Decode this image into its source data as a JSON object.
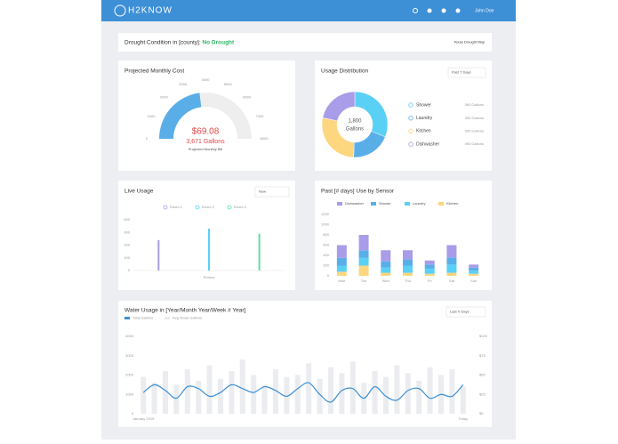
{
  "header": {
    "logo": "H2KNOW",
    "user": "John Doe"
  },
  "drought": {
    "label": "Drought Condition in [county]:",
    "status": "No Drought",
    "link": "Texas Drought Map"
  },
  "cost_card": {
    "title": "Projected Monthly Cost",
    "chart_data": {
      "type": "gauge",
      "value": 3671,
      "value_label": "3,671 Gallons",
      "cost": "$69.08",
      "caption": "Projected Monthly Bill",
      "ylim": [
        0,
        8000
      ],
      "yticks": [
        0,
        1000,
        2000,
        3000,
        4000,
        5000,
        6000,
        7000,
        8000
      ],
      "color": "#5aaee8"
    }
  },
  "distribution_card": {
    "title": "Usage Distribution",
    "dropdown": "Past 7 Days",
    "chart_data": {
      "type": "donut",
      "total_label": "1,800",
      "unit": "Gallons",
      "categories": [
        "Shower",
        "Laundry",
        "Kitchen",
        "Dishwasher"
      ],
      "values": [
        560,
        350,
        500,
        390
      ],
      "value_labels": [
        "560 Gallons",
        "350 Gallons",
        "500 Gallons",
        "390 Gallons"
      ],
      "colors": [
        "#5ad0f5",
        "#5aaee8",
        "#fdd680",
        "#a99ce8"
      ]
    }
  },
  "live_card": {
    "title": "Live Usage",
    "dropdown": "Now",
    "chart_data": {
      "type": "bar",
      "categories": [
        "Room 1",
        "Room 2",
        "Room 3"
      ],
      "values": [
        240,
        330,
        290
      ],
      "colors": [
        "#a99ce8",
        "#5ad0f5",
        "#5fe0a8"
      ],
      "xlabel": "Rooms",
      "ylim": [
        0,
        400
      ],
      "yticks": [
        0,
        100,
        200,
        300,
        400
      ]
    }
  },
  "sensor_card": {
    "title": "Past [# days] Use by Sensor",
    "chart_data": {
      "type": "stacked_bar",
      "categories": [
        "Mon",
        "Tue",
        "Wed",
        "Thu",
        "Fri",
        "Sat",
        "Sun"
      ],
      "series": [
        {
          "name": "Kitchen",
          "color": "#fdd680",
          "values": [
            80,
            200,
            60,
            60,
            40,
            60,
            40
          ]
        },
        {
          "name": "Laundry",
          "color": "#5ad0f5",
          "values": [
            120,
            150,
            100,
            140,
            100,
            160,
            60
          ]
        },
        {
          "name": "Shower",
          "color": "#5aaee8",
          "values": [
            150,
            150,
            120,
            120,
            80,
            140,
            60
          ]
        },
        {
          "name": "Dishwasher",
          "color": "#a99ce8",
          "values": [
            250,
            300,
            220,
            180,
            80,
            240,
            60
          ]
        }
      ],
      "ylim": [
        0,
        1200
      ],
      "yticks": [
        0,
        200,
        400,
        600,
        800,
        1000,
        1200
      ]
    }
  },
  "water_card": {
    "title": "Water Usage in [Year/Month Year/Week # Year]",
    "dropdown": "Last X Days",
    "chart_data": {
      "type": "bar_line",
      "categories": [
        "January 2019",
        null,
        null,
        null,
        null,
        null,
        null,
        null,
        null,
        null,
        null,
        null,
        null,
        null,
        null,
        null,
        null,
        null,
        null,
        null,
        null,
        null,
        null,
        null,
        null,
        null,
        null,
        null,
        null,
        "Today"
      ],
      "series": [
        {
          "name": "Total Gallons",
          "type": "line",
          "color": "#3b8fd4",
          "values": [
            1100,
            1500,
            1200,
            800,
            1400,
            1300,
            900,
            1100,
            1500,
            1300,
            1100,
            1400,
            1200,
            900,
            1300,
            1600,
            1000,
            600,
            1200,
            1300,
            800,
            1400,
            900,
            700,
            1200,
            1300,
            800,
            1000,
            900,
            1500
          ]
        },
        {
          "name": "Avg Texas Gallons",
          "type": "bar",
          "color": "#ebecf0",
          "values": [
            1900,
            1600,
            2200,
            1500,
            2300,
            1700,
            2500,
            1800,
            2200,
            2800,
            2000,
            1500,
            2300,
            1900,
            2000,
            2600,
            1800,
            2400,
            2100,
            2700,
            1600,
            2200,
            1900,
            2500,
            2100,
            1700,
            2400,
            2000,
            2300,
            1400
          ]
        }
      ],
      "ylim": [
        0,
        4000
      ],
      "yticks": [
        0,
        1000,
        2000,
        3000,
        4000
      ],
      "y2lim": [
        0,
        100
      ],
      "y2ticks": [
        {
          "value": 0,
          "label": "$0"
        },
        {
          "value": 25,
          "label": "$25"
        },
        {
          "value": 50,
          "label": "$50"
        },
        {
          "value": 75,
          "label": "$75"
        },
        {
          "value": 100,
          "label": "$100"
        }
      ]
    }
  }
}
